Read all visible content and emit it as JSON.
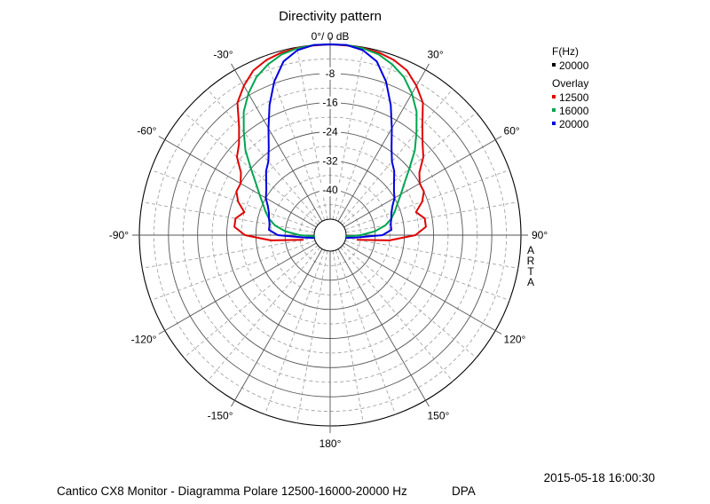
{
  "chart_data": {
    "type": "polar",
    "title": "Directivity pattern",
    "top_label": "0°/ 0 dB",
    "radial_ticks": [
      -8,
      -16,
      -24,
      -32,
      -40
    ],
    "radial_range": [
      -48,
      0
    ],
    "angle_labels": [
      {
        "angle": -30,
        "text": "-30°"
      },
      {
        "angle": 30,
        "text": "30°"
      },
      {
        "angle": -60,
        "text": "-60°"
      },
      {
        "angle": 60,
        "text": "60°"
      },
      {
        "angle": -90,
        "text": "-90°"
      },
      {
        "angle": 90,
        "text": "90°"
      },
      {
        "angle": -120,
        "text": "-120°"
      },
      {
        "angle": 120,
        "text": "120°"
      },
      {
        "angle": -150,
        "text": "-150°"
      },
      {
        "angle": 150,
        "text": "150°"
      },
      {
        "angle": 180,
        "text": "180°"
      }
    ],
    "side_label": "ARTA",
    "grid": true,
    "legend": {
      "position": "top-right",
      "f_header": "F(Hz)",
      "f_entry": {
        "label": "20000",
        "color": "#000000"
      },
      "overlay_header": "Overlay"
    },
    "series": [
      {
        "name": "12500",
        "color": "#e00000",
        "angles": [
          -100,
          -95,
          -90,
          -85,
          -80,
          -75,
          -70,
          -65,
          -60,
          -55,
          -50,
          -45,
          -40,
          -35,
          -30,
          -25,
          -20,
          -15,
          -10,
          -5,
          0,
          5,
          10,
          15,
          20,
          25,
          30,
          35,
          40,
          45,
          50,
          55,
          60,
          65,
          70,
          75,
          80,
          85,
          90,
          95,
          100
        ],
        "values": [
          -45,
          -36,
          -29,
          -26,
          -26,
          -28,
          -25.5,
          -24,
          -24,
          -22.5,
          -19,
          -17,
          -13.5,
          -8,
          -5,
          -2.5,
          -1.2,
          -0.5,
          -0.2,
          -0.1,
          0,
          -0.1,
          -0.2,
          -0.5,
          -1.2,
          -2.5,
          -5,
          -8,
          -13,
          -16.5,
          -19,
          -22.5,
          -24,
          -24,
          -25.5,
          -28,
          -26,
          -26,
          -29,
          -36,
          -45
        ]
      },
      {
        "name": "16000",
        "color": "#00a550",
        "angles": [
          -100,
          -95,
          -90,
          -85,
          -80,
          -75,
          -70,
          -65,
          -60,
          -55,
          -50,
          -45,
          -40,
          -35,
          -30,
          -25,
          -20,
          -15,
          -10,
          -5,
          0,
          5,
          10,
          15,
          20,
          25,
          30,
          35,
          40,
          45,
          50,
          55,
          60,
          65,
          70,
          75,
          80,
          85,
          90,
          95,
          100
        ],
        "values": [
          -48,
          -48,
          -44,
          -40,
          -37,
          -35,
          -33.5,
          -32,
          -30,
          -27.5,
          -24,
          -19.5,
          -15.5,
          -11,
          -7.5,
          -4.5,
          -2.5,
          -1,
          -0.3,
          0,
          0,
          0,
          -0.3,
          -1,
          -2.5,
          -4.5,
          -7.5,
          -11,
          -15.5,
          -19.5,
          -24,
          -27.5,
          -30,
          -32,
          -33.5,
          -35,
          -37,
          -40,
          -44,
          -48,
          -48
        ]
      },
      {
        "name": "20000",
        "color": "#0000e0",
        "angles": [
          -100,
          -95,
          -90,
          -85,
          -80,
          -75,
          -70,
          -65,
          -60,
          -55,
          -50,
          -45,
          -40,
          -35,
          -30,
          -25,
          -20,
          -15,
          -10,
          -5,
          0,
          5,
          10,
          15,
          20,
          25,
          30,
          35,
          40,
          45,
          50,
          55,
          60,
          65,
          70,
          75,
          80,
          85,
          90,
          95,
          100
        ],
        "values": [
          -48,
          -45,
          -38,
          -35.5,
          -35.5,
          -35,
          -34.5,
          -33.5,
          -32,
          -31,
          -29.5,
          -27.5,
          -26,
          -23,
          -18.5,
          -13,
          -7.5,
          -3,
          -0.8,
          0,
          0,
          0,
          -0.8,
          -3,
          -7.5,
          -13,
          -18.5,
          -23,
          -26,
          -27.5,
          -29.5,
          -31,
          -32,
          -33.5,
          -34.5,
          -35,
          -35.5,
          -35.5,
          -38,
          -45,
          -48
        ]
      }
    ]
  },
  "footer": {
    "timestamp": "2015-05-18  16:00:30",
    "caption": "Cantico CX8 Monitor - Diagramma Polare 12500-16000-20000 Hz",
    "label_right": "DPA"
  }
}
